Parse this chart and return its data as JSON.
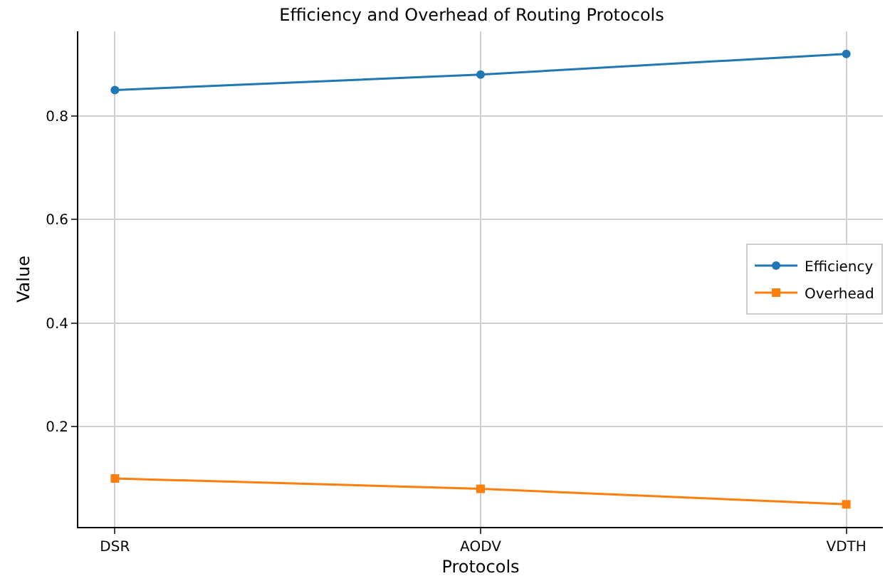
{
  "chart_data": {
    "type": "line",
    "title": "Efficiency and Overhead of Routing Protocols",
    "xlabel": "Protocols",
    "ylabel": "Value",
    "categories": [
      "DSR",
      "AODV",
      "VDTH"
    ],
    "series": [
      {
        "name": "Efficiency",
        "color": "#1f77b4",
        "marker": "circle",
        "values": [
          0.85,
          0.88,
          0.92
        ]
      },
      {
        "name": "Overhead",
        "color": "#ff7f0e",
        "marker": "square",
        "values": [
          0.1,
          0.08,
          0.05
        ]
      }
    ],
    "ylim": [
      0.0065,
      0.9635
    ],
    "yticks": [
      0.2,
      0.4,
      0.6,
      0.8
    ],
    "grid": true,
    "legend": "right",
    "line_style": "solid"
  }
}
